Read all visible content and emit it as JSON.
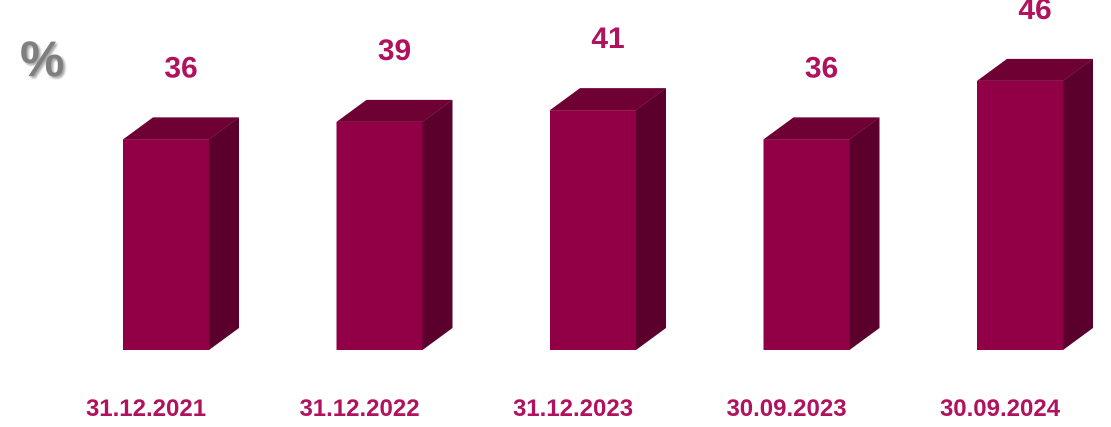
{
  "chart_data": {
    "type": "bar",
    "style": "3d-column",
    "unit_label": "%",
    "categories": [
      "31.12.2021",
      "31.12.2022",
      "31.12.2023",
      "30.09.2023",
      "30.09.2024"
    ],
    "values": [
      36,
      39,
      41,
      36,
      46
    ],
    "data_labels": [
      "36",
      "39",
      "41",
      "36",
      "46"
    ],
    "title": "",
    "xlabel": "",
    "ylabel": "",
    "grid": false,
    "legend": "none"
  },
  "colors": {
    "bar_front": "#910046",
    "bar_top": "#6e0034",
    "bar_side": "#5b002c",
    "label_text": "#b0125e",
    "unit_text": "#7f7f7f"
  }
}
